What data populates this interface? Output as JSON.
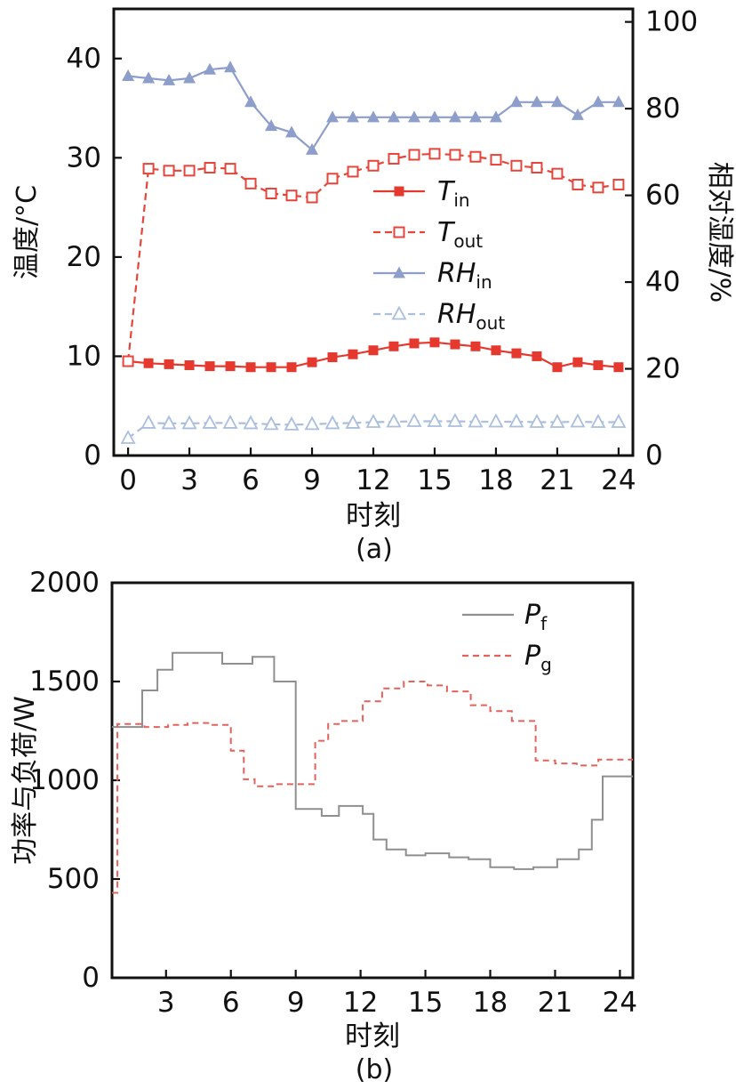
{
  "page": {
    "background": "#ffffff",
    "text_color": "#111111"
  },
  "chart_data": [
    {
      "id": "a",
      "type": "line",
      "caption": "(a)",
      "xlabel": "时刻",
      "ylabel_left": "温度/°C",
      "ylabel_right": "相对湿度/%",
      "xlim": [
        -0.7,
        24.7
      ],
      "xticks": [
        0,
        3,
        6,
        9,
        12,
        15,
        18,
        21,
        24
      ],
      "ylim_left": [
        0,
        45
      ],
      "yticks_left": [
        0,
        10,
        20,
        30,
        40
      ],
      "ylim_right": [
        0,
        103
      ],
      "yticks_right": [
        0,
        20,
        40,
        60,
        80,
        100
      ],
      "grid": false,
      "legend_position": "center-right",
      "x": [
        0,
        1,
        2,
        3,
        4,
        5,
        6,
        7,
        8,
        9,
        10,
        11,
        12,
        13,
        14,
        15,
        16,
        17,
        18,
        19,
        20,
        21,
        22,
        23,
        24
      ],
      "series": [
        {
          "name": "T_in",
          "legend_base": "T",
          "legend_sub": "in",
          "axis": "left",
          "color": "#e5392f",
          "line": "solid",
          "marker": "square-filled",
          "values": [
            9.5,
            9.3,
            9.2,
            9.1,
            9.0,
            9.0,
            8.9,
            8.9,
            8.9,
            9.4,
            9.9,
            10.2,
            10.6,
            11.0,
            11.3,
            11.4,
            11.2,
            11.0,
            10.6,
            10.3,
            10.0,
            8.9,
            9.4,
            9.1,
            8.9
          ]
        },
        {
          "name": "T_out",
          "legend_base": "T",
          "legend_sub": "out",
          "axis": "left",
          "color": "#e5453b",
          "line": "dashed",
          "marker": "square-open",
          "values": [
            9.5,
            28.9,
            28.7,
            28.7,
            29.0,
            28.9,
            27.4,
            26.4,
            26.2,
            26.0,
            27.9,
            28.6,
            29.2,
            29.9,
            30.3,
            30.4,
            30.3,
            30.1,
            29.8,
            29.2,
            29.0,
            28.4,
            27.3,
            27.0,
            27.3
          ]
        },
        {
          "name": "RH_in",
          "legend_base": "RH",
          "legend_sub": "in",
          "axis": "right",
          "color": "#8d9ecb",
          "line": "solid",
          "marker": "triangle-filled",
          "values": [
            87.5,
            87.0,
            86.5,
            87.0,
            89.0,
            89.5,
            81.5,
            76.0,
            74.5,
            70.5,
            78.0,
            78.0,
            78.0,
            78.0,
            78.0,
            78.0,
            78.0,
            78.0,
            78.0,
            81.5,
            81.5,
            81.5,
            78.5,
            81.5,
            81.5
          ]
        },
        {
          "name": "RH_out",
          "legend_base": "RH",
          "legend_sub": "out",
          "axis": "right",
          "color": "#aabedd",
          "line": "dashed",
          "marker": "triangle-open",
          "values": [
            4.0,
            7.5,
            7.4,
            7.4,
            7.5,
            7.5,
            7.4,
            7.2,
            7.1,
            7.2,
            7.4,
            7.5,
            7.7,
            7.8,
            7.9,
            7.9,
            7.9,
            7.8,
            7.8,
            7.8,
            7.7,
            7.7,
            7.8,
            7.7,
            7.7
          ]
        }
      ]
    },
    {
      "id": "b",
      "type": "step",
      "caption": "(b)",
      "xlabel": "时刻",
      "ylabel": "功率与负荷/W",
      "xlim": [
        0.5,
        24.6
      ],
      "xticks": [
        3,
        6,
        9,
        12,
        15,
        18,
        21,
        24
      ],
      "ylim": [
        0,
        2000
      ],
      "yticks": [
        0,
        500,
        1000,
        1500,
        2000
      ],
      "grid": false,
      "legend_position": "top-right",
      "series": [
        {
          "name": "P_f",
          "legend_base": "P",
          "legend_sub": "f",
          "color": "#8f8f8f",
          "line": "solid",
          "edges": [
            0.5,
            1.9,
            2.6,
            3.3,
            5.6,
            7.0,
            8.0,
            9.0,
            10.2,
            11.0,
            12.1,
            12.6,
            13.2,
            14.1,
            15.0,
            16.1,
            17.0,
            18.0,
            19.1,
            20.0,
            21.1,
            22.1,
            22.7,
            23.2,
            24.6
          ],
          "values": [
            1270,
            1455,
            1560,
            1645,
            1590,
            1625,
            1500,
            855,
            820,
            870,
            830,
            700,
            650,
            620,
            630,
            610,
            600,
            560,
            550,
            560,
            600,
            650,
            800,
            1020
          ]
        },
        {
          "name": "P_g",
          "legend_base": "P",
          "legend_sub": "g",
          "color": "#e4625c",
          "line": "dashed",
          "edges": [
            0.5,
            0.75,
            2.0,
            3.1,
            4.0,
            5.0,
            6.0,
            6.6,
            7.1,
            8.0,
            9.9,
            10.5,
            11.1,
            12.1,
            13.0,
            14.0,
            15.1,
            16.0,
            17.1,
            18.0,
            19.0,
            20.1,
            21.0,
            22.0,
            23.0,
            24.6
          ],
          "values": [
            430,
            1285,
            1270,
            1280,
            1290,
            1280,
            1150,
            1005,
            970,
            980,
            1200,
            1285,
            1300,
            1400,
            1465,
            1500,
            1480,
            1450,
            1380,
            1350,
            1300,
            1100,
            1085,
            1075,
            1105
          ]
        }
      ]
    }
  ]
}
